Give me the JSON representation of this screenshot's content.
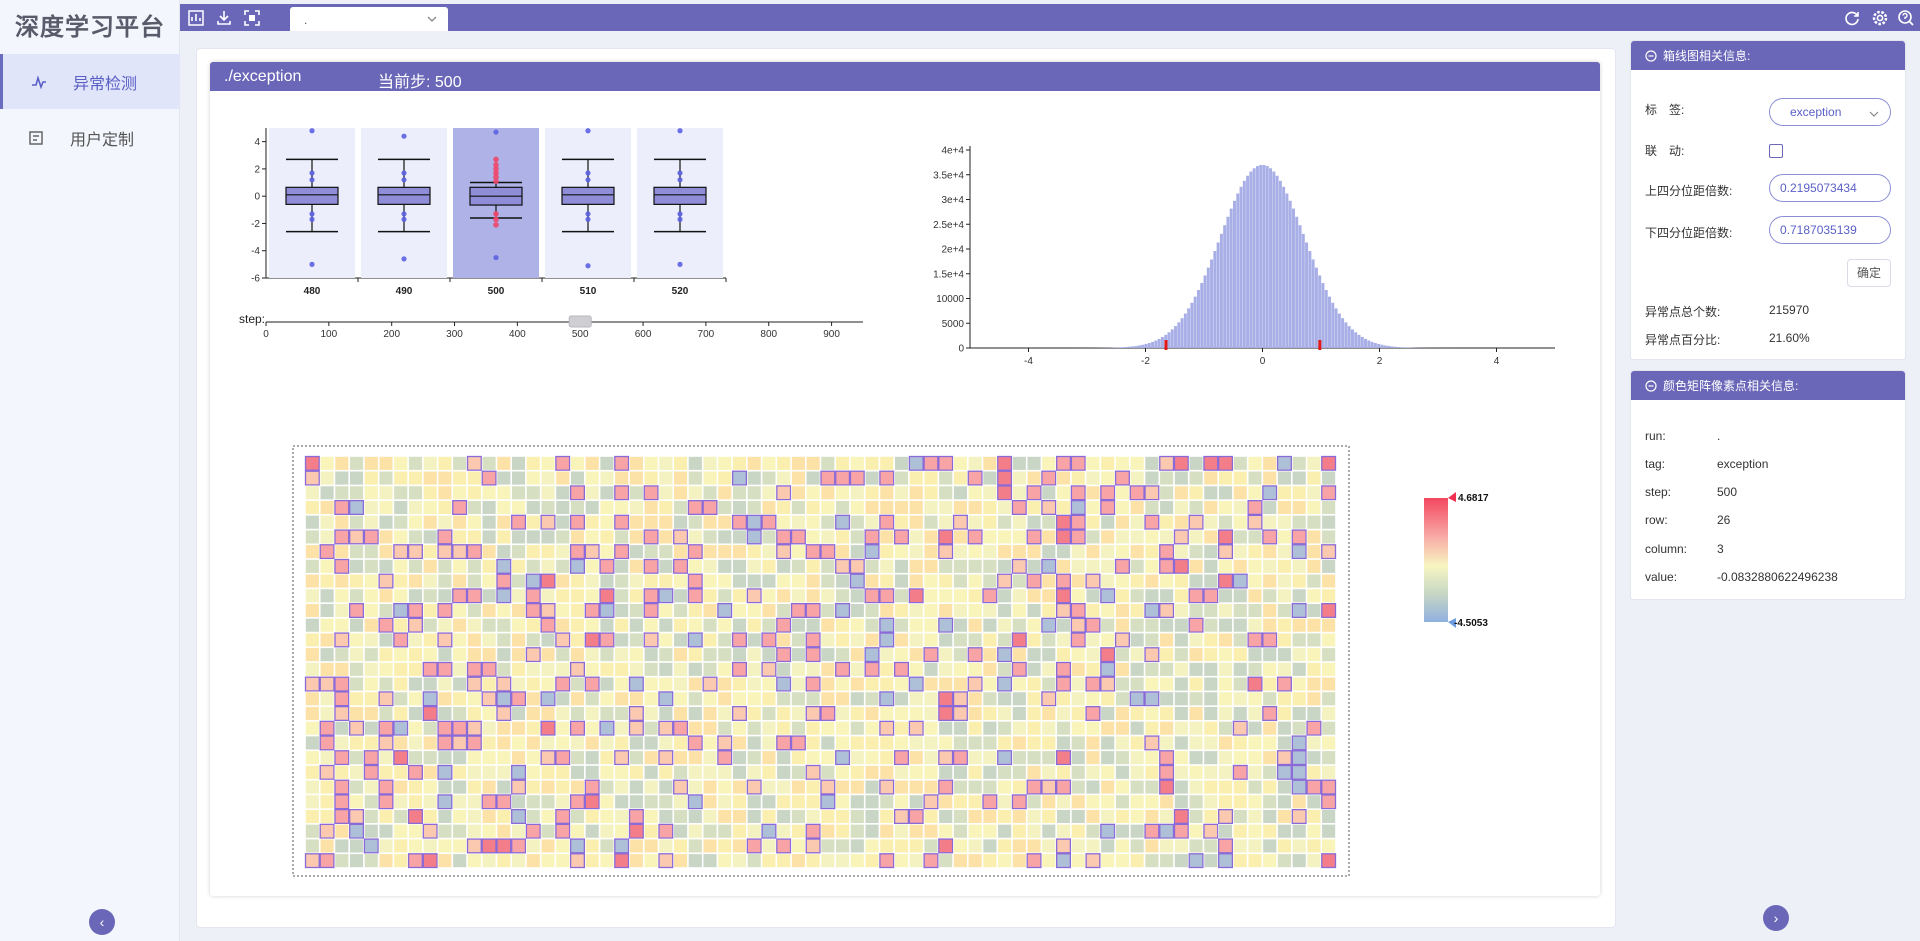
{
  "app": {
    "title": "深度学习平台"
  },
  "sidebar": {
    "items": [
      {
        "label": "异常检测",
        "icon": "anomaly-icon",
        "active": true
      },
      {
        "label": "用户定制",
        "icon": "custom-icon",
        "active": false
      }
    ]
  },
  "topbar": {
    "left_icons": [
      "chart-icon",
      "download-icon",
      "fullscreen-icon"
    ],
    "run_select": {
      "value": "."
    },
    "right_icons": [
      "refresh-icon",
      "settings-icon",
      "help-icon"
    ]
  },
  "main": {
    "header": {
      "tag": "./exception",
      "step_label": "当前步:",
      "step_value": "500"
    },
    "step_slider": {
      "label": "step:",
      "ticks": [
        "0",
        "100",
        "200",
        "300",
        "400",
        "500",
        "600",
        "700",
        "800",
        "900"
      ],
      "min": 0,
      "max": 950,
      "value": 500
    },
    "colorbar": {
      "max_label": "4.6817",
      "min_label": "-4.5053",
      "max": 4.6817,
      "min": -4.5053
    }
  },
  "chart_data": [
    {
      "type": "box",
      "categories": [
        "480",
        "490",
        "500",
        "510",
        "520"
      ],
      "selected": "500",
      "yticks": [
        "4",
        "2",
        "0",
        "-2",
        "-4",
        "-6"
      ],
      "ylim": [
        -6,
        5
      ],
      "boxes": [
        {
          "whisker_low": -2.6,
          "q1": -0.6,
          "median": 0.1,
          "q3": 0.65,
          "whisker_high": 2.7,
          "outliers": [
            4.8,
            1.7,
            1.2,
            -1.3,
            -1.7,
            -5.0
          ]
        },
        {
          "whisker_low": -2.6,
          "q1": -0.6,
          "median": 0.1,
          "q3": 0.65,
          "whisker_high": 2.7,
          "outliers": [
            4.4,
            1.7,
            1.2,
            -1.3,
            -1.7,
            -4.6
          ]
        },
        {
          "whisker_low": -1.6,
          "q1": -0.65,
          "median": 0.0,
          "q3": 0.65,
          "whisker_high": 1.0,
          "outliers": [
            4.7,
            2.7,
            2.3,
            2.0,
            1.7,
            1.4,
            1.1,
            -1.3,
            -1.7,
            -2.1,
            -4.5
          ]
        },
        {
          "whisker_low": -2.6,
          "q1": -0.6,
          "median": 0.1,
          "q3": 0.65,
          "whisker_high": 2.7,
          "outliers": [
            4.8,
            1.7,
            1.2,
            -1.3,
            -1.7,
            -5.1
          ]
        },
        {
          "whisker_low": -2.6,
          "q1": -0.6,
          "median": 0.1,
          "q3": 0.65,
          "whisker_high": 2.7,
          "outliers": [
            4.8,
            1.7,
            1.2,
            -1.3,
            -1.7,
            -5.0
          ]
        }
      ]
    },
    {
      "type": "bar",
      "yticks": [
        "4e+4",
        "3.5e+4",
        "3e+4",
        "2.5e+4",
        "2e+4",
        "1.5e+4",
        "10000",
        "5000",
        "0"
      ],
      "xticks": [
        "-4",
        "-2",
        "0",
        "2",
        "4"
      ],
      "xlim": [
        -5,
        5
      ],
      "ylim": [
        0,
        40000
      ],
      "distribution": {
        "mean": 0,
        "std": 0.72,
        "peak": 37000,
        "bins": 150
      },
      "markers": [
        -1.65,
        0.98
      ]
    },
    {
      "type": "heatmap",
      "rows": 28,
      "columns": 70,
      "value_range": [
        -4.5053,
        4.6817
      ]
    }
  ],
  "box_panel": {
    "title": "箱线图相关信息:",
    "fields": {
      "label_label": "标　签:",
      "label_value": "exception",
      "link_label": "联　动:",
      "upper_label": "上四分位距倍数:",
      "upper_value": "0.2195073434",
      "lower_label": "下四分位距倍数:",
      "lower_value": "0.7187035139",
      "confirm": "确定",
      "total_label": "异常点总个数:",
      "total_value": "215970",
      "pct_label": "异常点百分比:",
      "pct_value": "21.60%"
    }
  },
  "pixel_panel": {
    "title": "颜色矩阵像素点相关信息:",
    "rows": [
      {
        "label": "run:",
        "value": "."
      },
      {
        "label": "tag:",
        "value": "exception"
      },
      {
        "label": "step:",
        "value": "500"
      },
      {
        "label": "row:",
        "value": "26"
      },
      {
        "label": "column:",
        "value": "3"
      },
      {
        "label": "value:",
        "value": "-0.0832880622496238"
      }
    ]
  },
  "colors": {
    "accent": "#6a67b8",
    "box_fill": "#8f8cd8",
    "bar_fill": "#a8aee6",
    "outlier": "#5c60e0",
    "outlier_hot": "#f0466a"
  }
}
